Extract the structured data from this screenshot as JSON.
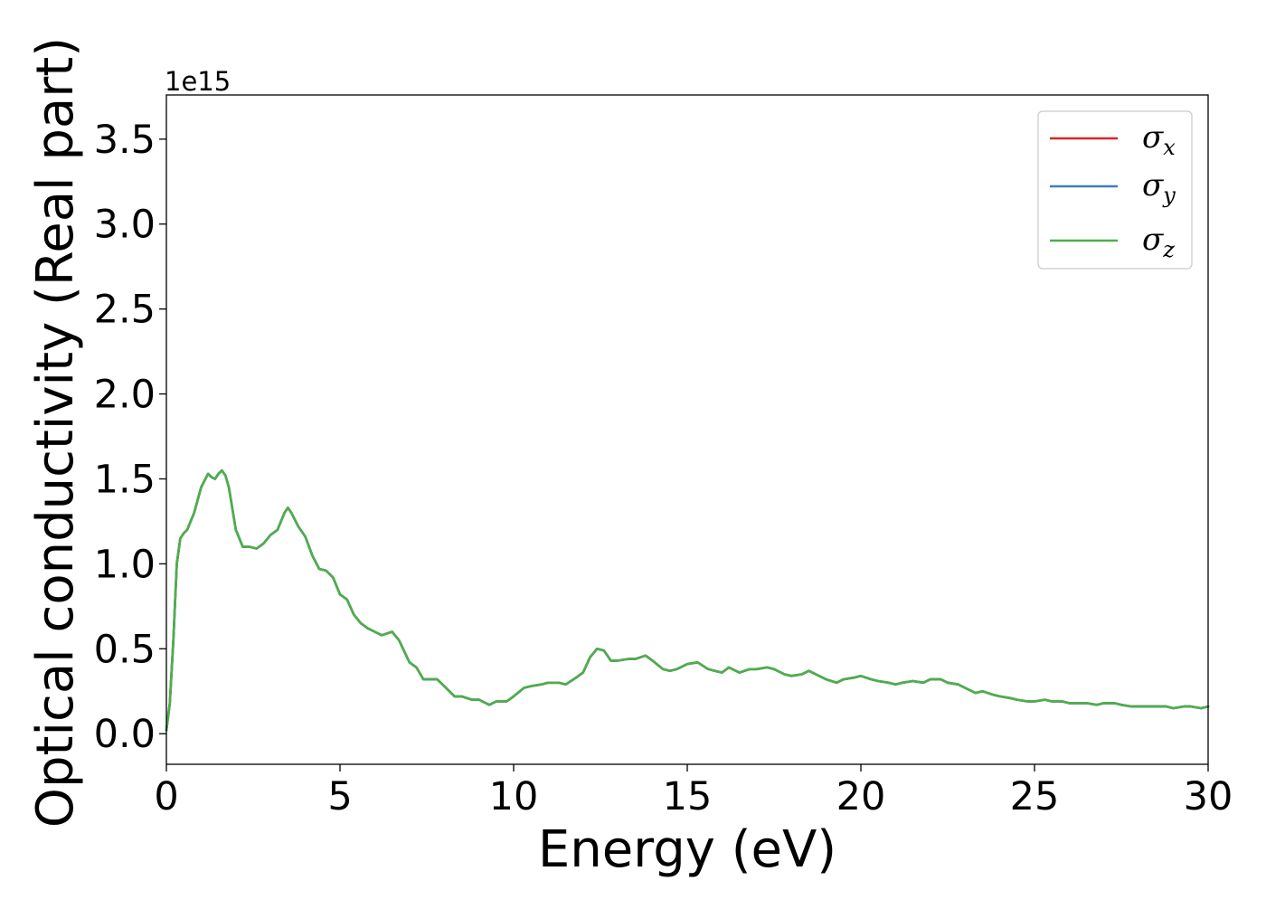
{
  "chart_data": {
    "type": "line",
    "title": "",
    "xlabel": "Energy (eV)",
    "ylabel": "Optical conductivity (Real part)",
    "y_offset_label": "1e15",
    "y_scale_factor": 1000000000000000.0,
    "xlim": [
      0,
      30
    ],
    "ylim": [
      -0.18,
      3.76
    ],
    "x_ticks": [
      0,
      5,
      10,
      15,
      20,
      25,
      30
    ],
    "x_tick_labels": [
      "0",
      "5",
      "10",
      "15",
      "20",
      "25",
      "30"
    ],
    "y_ticks": [
      0.0,
      0.5,
      1.0,
      1.5,
      2.0,
      2.5,
      3.0,
      3.5
    ],
    "y_tick_labels": [
      "0.0",
      "0.5",
      "1.0",
      "1.5",
      "2.0",
      "2.5",
      "3.0",
      "3.5"
    ],
    "grid": false,
    "legend_position": "top-right",
    "x": [
      0,
      0.1,
      0.2,
      0.3,
      0.4,
      0.5,
      0.6,
      0.8,
      1.0,
      1.2,
      1.3,
      1.4,
      1.5,
      1.6,
      1.7,
      1.8,
      2.0,
      2.2,
      2.4,
      2.6,
      2.8,
      3.0,
      3.2,
      3.4,
      3.5,
      3.6,
      3.8,
      4.0,
      4.2,
      4.4,
      4.6,
      4.8,
      5.0,
      5.2,
      5.4,
      5.6,
      5.8,
      6.0,
      6.2,
      6.5,
      6.7,
      7.0,
      7.2,
      7.4,
      7.6,
      7.8,
      8.0,
      8.3,
      8.5,
      8.8,
      9.0,
      9.3,
      9.5,
      9.8,
      10.0,
      10.3,
      10.5,
      10.8,
      11.0,
      11.3,
      11.5,
      11.8,
      12.0,
      12.2,
      12.4,
      12.6,
      12.8,
      13.0,
      13.3,
      13.5,
      13.8,
      14.0,
      14.3,
      14.5,
      14.7,
      14.9,
      15.0,
      15.3,
      15.6,
      15.8,
      16.0,
      16.2,
      16.5,
      16.8,
      17.0,
      17.3,
      17.5,
      17.8,
      18.0,
      18.3,
      18.5,
      18.8,
      19.0,
      19.3,
      19.5,
      19.8,
      20.0,
      20.3,
      20.5,
      20.8,
      21.0,
      21.2,
      21.5,
      21.8,
      22.0,
      22.3,
      22.5,
      22.8,
      23.0,
      23.3,
      23.5,
      23.8,
      24.0,
      24.3,
      24.5,
      24.8,
      25.0,
      25.3,
      25.5,
      25.8,
      26.0,
      26.3,
      26.5,
      26.8,
      27.0,
      27.3,
      27.5,
      27.8,
      28.0,
      28.3,
      28.5,
      28.8,
      29.0,
      29.3,
      29.5,
      29.8,
      30.0
    ],
    "series": [
      {
        "name": "σx",
        "symbol": "σ",
        "subscript": "x",
        "color": "#d62728",
        "values": [
          0.02,
          0.18,
          0.55,
          1.0,
          1.15,
          1.18,
          1.2,
          1.3,
          1.45,
          1.53,
          1.51,
          1.5,
          1.53,
          1.55,
          1.52,
          1.45,
          1.2,
          1.1,
          1.1,
          1.09,
          1.12,
          1.17,
          1.2,
          1.3,
          1.33,
          1.3,
          1.22,
          1.16,
          1.05,
          0.97,
          0.96,
          0.92,
          0.82,
          0.79,
          0.7,
          0.65,
          0.62,
          0.6,
          0.58,
          0.6,
          0.55,
          0.42,
          0.39,
          0.32,
          0.32,
          0.32,
          0.28,
          0.22,
          0.22,
          0.2,
          0.2,
          0.17,
          0.19,
          0.19,
          0.22,
          0.27,
          0.28,
          0.29,
          0.3,
          0.3,
          0.29,
          0.33,
          0.36,
          0.45,
          0.5,
          0.49,
          0.43,
          0.43,
          0.44,
          0.44,
          0.46,
          0.43,
          0.38,
          0.37,
          0.38,
          0.4,
          0.41,
          0.42,
          0.38,
          0.37,
          0.36,
          0.39,
          0.36,
          0.38,
          0.38,
          0.39,
          0.38,
          0.35,
          0.34,
          0.35,
          0.37,
          0.34,
          0.32,
          0.3,
          0.32,
          0.33,
          0.34,
          0.32,
          0.31,
          0.3,
          0.29,
          0.3,
          0.31,
          0.3,
          0.32,
          0.32,
          0.3,
          0.29,
          0.27,
          0.24,
          0.25,
          0.23,
          0.22,
          0.21,
          0.2,
          0.19,
          0.19,
          0.2,
          0.19,
          0.19,
          0.18,
          0.18,
          0.18,
          0.17,
          0.18,
          0.18,
          0.17,
          0.16,
          0.16,
          0.16,
          0.16,
          0.16,
          0.15,
          0.16,
          0.16,
          0.15,
          0.16
        ]
      },
      {
        "name": "σy",
        "symbol": "σ",
        "subscript": "y",
        "color": "#3a7fc2",
        "values": [
          0.02,
          0.18,
          0.55,
          1.0,
          1.15,
          1.18,
          1.2,
          1.3,
          1.45,
          1.53,
          1.51,
          1.5,
          1.53,
          1.55,
          1.52,
          1.45,
          1.2,
          1.1,
          1.1,
          1.09,
          1.12,
          1.17,
          1.2,
          1.3,
          1.33,
          1.3,
          1.22,
          1.16,
          1.05,
          0.97,
          0.96,
          0.92,
          0.82,
          0.79,
          0.7,
          0.65,
          0.62,
          0.6,
          0.58,
          0.6,
          0.55,
          0.42,
          0.39,
          0.32,
          0.32,
          0.32,
          0.28,
          0.22,
          0.22,
          0.2,
          0.2,
          0.17,
          0.19,
          0.19,
          0.22,
          0.27,
          0.28,
          0.29,
          0.3,
          0.3,
          0.29,
          0.33,
          0.36,
          0.45,
          0.5,
          0.49,
          0.43,
          0.43,
          0.44,
          0.44,
          0.46,
          0.43,
          0.38,
          0.37,
          0.38,
          0.4,
          0.41,
          0.42,
          0.38,
          0.37,
          0.36,
          0.39,
          0.36,
          0.38,
          0.38,
          0.39,
          0.38,
          0.35,
          0.34,
          0.35,
          0.37,
          0.34,
          0.32,
          0.3,
          0.32,
          0.33,
          0.34,
          0.32,
          0.31,
          0.3,
          0.29,
          0.3,
          0.31,
          0.3,
          0.32,
          0.32,
          0.3,
          0.29,
          0.27,
          0.24,
          0.25,
          0.23,
          0.22,
          0.21,
          0.2,
          0.19,
          0.19,
          0.2,
          0.19,
          0.19,
          0.18,
          0.18,
          0.18,
          0.17,
          0.18,
          0.18,
          0.17,
          0.16,
          0.16,
          0.16,
          0.16,
          0.16,
          0.15,
          0.16,
          0.16,
          0.15,
          0.16
        ]
      },
      {
        "name": "σz",
        "symbol": "σ",
        "subscript": "z",
        "color": "#4daf4a",
        "values": [
          0.02,
          0.18,
          0.55,
          1.0,
          1.15,
          1.18,
          1.2,
          1.3,
          1.45,
          1.53,
          1.51,
          1.5,
          1.53,
          1.55,
          1.52,
          1.45,
          1.2,
          1.1,
          1.1,
          1.09,
          1.12,
          1.17,
          1.2,
          1.3,
          1.33,
          1.3,
          1.22,
          1.16,
          1.05,
          0.97,
          0.96,
          0.92,
          0.82,
          0.79,
          0.7,
          0.65,
          0.62,
          0.6,
          0.58,
          0.6,
          0.55,
          0.42,
          0.39,
          0.32,
          0.32,
          0.32,
          0.28,
          0.22,
          0.22,
          0.2,
          0.2,
          0.17,
          0.19,
          0.19,
          0.22,
          0.27,
          0.28,
          0.29,
          0.3,
          0.3,
          0.29,
          0.33,
          0.36,
          0.45,
          0.5,
          0.49,
          0.43,
          0.43,
          0.44,
          0.44,
          0.46,
          0.43,
          0.38,
          0.37,
          0.38,
          0.4,
          0.41,
          0.42,
          0.38,
          0.37,
          0.36,
          0.39,
          0.36,
          0.38,
          0.38,
          0.39,
          0.38,
          0.35,
          0.34,
          0.35,
          0.37,
          0.34,
          0.32,
          0.3,
          0.32,
          0.33,
          0.34,
          0.32,
          0.31,
          0.3,
          0.29,
          0.3,
          0.31,
          0.3,
          0.32,
          0.32,
          0.3,
          0.29,
          0.27,
          0.24,
          0.25,
          0.23,
          0.22,
          0.21,
          0.2,
          0.19,
          0.19,
          0.2,
          0.19,
          0.19,
          0.18,
          0.18,
          0.18,
          0.17,
          0.18,
          0.18,
          0.17,
          0.16,
          0.16,
          0.16,
          0.16,
          0.16,
          0.15,
          0.16,
          0.16,
          0.15,
          0.16
        ]
      }
    ]
  }
}
